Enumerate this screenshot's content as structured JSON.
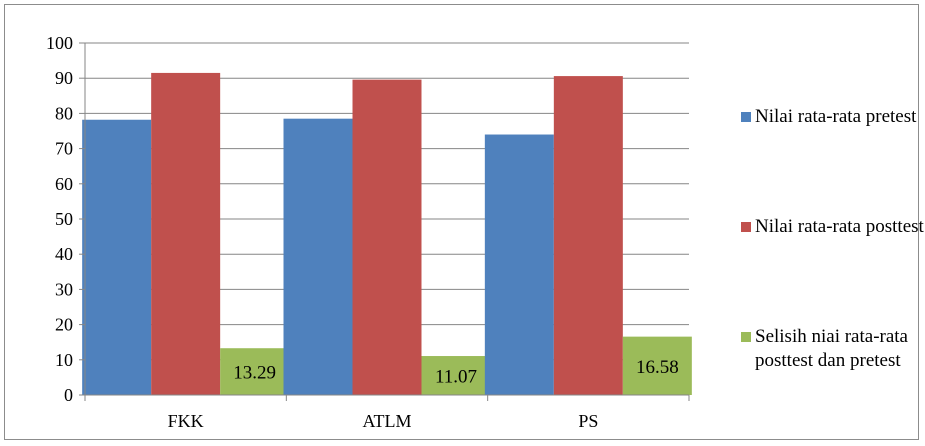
{
  "chart_data": {
    "type": "bar",
    "categories": [
      "FKK",
      "ATLM",
      "PS"
    ],
    "series": [
      {
        "name": "Nilai rata-rata pretest",
        "values": [
          78.2,
          78.5,
          74.0
        ],
        "color": "#4f81bd"
      },
      {
        "name": "Nilai rata-rata posttest",
        "values": [
          91.5,
          89.6,
          90.6
        ],
        "color": "#c0504d"
      },
      {
        "name": "Selisih niai rata-rata posttest dan pretest",
        "values": [
          13.29,
          11.07,
          16.58
        ],
        "color": "#9bbb59",
        "data_labels": [
          "13.29",
          "11.07",
          "16.58"
        ]
      }
    ],
    "ylim": [
      0,
      100
    ],
    "yticks": [
      "0",
      "10",
      "20",
      "30",
      "40",
      "50",
      "60",
      "70",
      "80",
      "90",
      "100"
    ],
    "grid": true,
    "legend_position": "right"
  }
}
